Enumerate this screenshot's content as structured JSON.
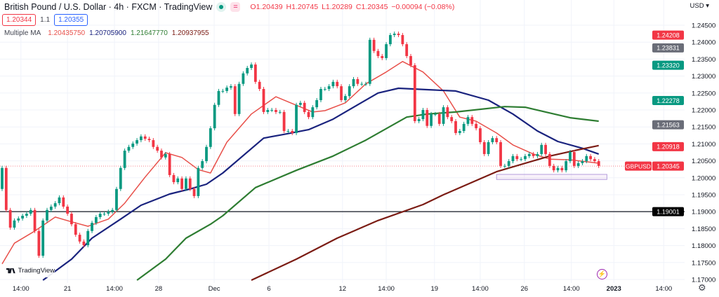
{
  "header": {
    "title": "British Pound / U.S. Dollar · 4h · FXCM · TradingView",
    "ohlc": {
      "o": "O1.20439",
      "h": "H1.20745",
      "l": "L1.20289",
      "c": "C1.20345",
      "change": "−0.00094 (−0.08%)"
    },
    "sell_price": "1.20344",
    "spread": "1.1",
    "buy_price": "1.20355",
    "indicator_name": "Multiple MA",
    "ma_values": [
      "1.20435750",
      "1.20705900",
      "1.21647770",
      "1.20937955"
    ],
    "currency": "USD ▾"
  },
  "colors": {
    "up": "#089981",
    "down": "#f23645",
    "ma1": "#e8504a",
    "ma2": "#1a237e",
    "ma3": "#2e7d32",
    "ma4": "#7b1c14",
    "hline": "#131722"
  },
  "icons": {
    "logo": "tradingview-logo",
    "events": "lightning-icon",
    "settings": "gear-icon"
  },
  "logo_text": "TradingView",
  "chart_data": {
    "type": "candlestick",
    "symbol": "GBPUSD",
    "interval": "4h",
    "ylim": [
      1.169,
      1.2524
    ],
    "y_ticks": [
      "1.24500",
      "1.24000",
      "1.23500",
      "1.23000",
      "1.22500",
      "1.22000",
      "1.21500",
      "1.21000",
      "1.20500",
      "1.20000",
      "1.19500",
      "1.19000",
      "1.18500",
      "1.18000",
      "1.17500",
      "1.17000"
    ],
    "x_ticks": [
      {
        "label": "14:00",
        "bar": 4.6
      },
      {
        "label": "21",
        "bar": 16
      },
      {
        "label": "14:00",
        "bar": 27.5
      },
      {
        "label": "28",
        "bar": 38.3
      },
      {
        "label": "Dec",
        "bar": 51.9
      },
      {
        "label": "6",
        "bar": 65.3
      },
      {
        "label": "12",
        "bar": 83.3
      },
      {
        "label": "14:00",
        "bar": 94
      },
      {
        "label": "19",
        "bar": 105.8
      },
      {
        "label": "14:00",
        "bar": 117
      },
      {
        "label": "26",
        "bar": 127.8
      },
      {
        "label": "14:00",
        "bar": 139.3
      },
      {
        "label": "2023",
        "bar": 149.7,
        "bold": true
      },
      {
        "label": "14:00",
        "bar": 161.9
      }
    ],
    "first_open": 1.1967,
    "closes": [
      1.2029,
      1.1905,
      1.1853,
      1.1874,
      1.188,
      1.1888,
      1.1894,
      1.1905,
      1.1843,
      1.177,
      1.1874,
      1.1905,
      1.1915,
      1.1925,
      1.1942,
      1.1915,
      1.1894,
      1.1863,
      1.1832,
      1.1812,
      1.1801,
      1.1843,
      1.1867,
      1.1884,
      1.1894,
      1.1894,
      1.19,
      1.1905,
      1.1967,
      1.2029,
      1.208,
      1.2091,
      1.2101,
      1.2111,
      1.2122,
      1.2115,
      1.2111,
      1.2091,
      1.208,
      1.206,
      1.207,
      1.2008,
      1.1987,
      1.1998,
      1.1967,
      1.1998,
      1.1967,
      1.1946,
      1.2029,
      1.2049,
      1.2091,
      1.2146,
      1.2215,
      1.2256,
      1.2256,
      1.2266,
      1.227,
      1.2188,
      1.2277,
      1.2308,
      1.2324,
      1.2334,
      1.2283,
      1.2262,
      1.2194,
      1.22,
      1.22,
      1.2194,
      1.2194,
      1.2138,
      1.2138,
      1.2132,
      1.2215,
      1.2221,
      1.2194,
      1.2179,
      1.2208,
      1.2229,
      1.2262,
      1.2262,
      1.227,
      1.2283,
      1.227,
      1.2229,
      1.2241,
      1.227,
      1.2291,
      1.2277,
      1.2277,
      1.2277,
      1.2407,
      1.2374,
      1.2359,
      1.2353,
      1.2394,
      1.2421,
      1.2425,
      1.2421,
      1.2394,
      1.2359,
      1.2332,
      1.2167,
      1.2173,
      1.22,
      1.2153,
      1.2188,
      1.2188,
      1.2159,
      1.2208,
      1.2179,
      1.2167,
      1.2132,
      1.2138,
      1.2159,
      1.2179,
      1.2159,
      1.2146,
      1.2105,
      1.207,
      1.2105,
      1.2117,
      1.2105,
      1.2035,
      1.2035,
      1.2049,
      1.2064,
      1.2055,
      1.2055,
      1.2064,
      1.207,
      1.2064,
      1.207,
      1.2097,
      1.207,
      1.2035,
      1.2022,
      1.2029,
      1.2022,
      1.2049,
      1.2076,
      1.2035,
      1.2043,
      1.2049,
      1.2064,
      1.2055,
      1.2049,
      1.2035
    ],
    "moving_averages": [
      {
        "color_key": "ma1",
        "points": [
          [
            0,
            1.1746
          ],
          [
            3,
            1.1807
          ],
          [
            8,
            1.1843
          ],
          [
            13,
            1.1884
          ],
          [
            17,
            1.187
          ],
          [
            21,
            1.1857
          ],
          [
            26,
            1.1878
          ],
          [
            30,
            1.1925
          ],
          [
            35,
            1.2002
          ],
          [
            40,
            1.2074
          ],
          [
            44,
            1.206
          ],
          [
            48,
            1.2024
          ],
          [
            51,
            1.2014
          ],
          [
            55,
            1.2105
          ],
          [
            61,
            1.2188
          ],
          [
            67,
            1.2239
          ],
          [
            71,
            1.2219
          ],
          [
            76,
            1.2194
          ],
          [
            79,
            1.2198
          ],
          [
            84,
            1.2221
          ],
          [
            89,
            1.2277
          ],
          [
            94,
            1.2312
          ],
          [
            98,
            1.2343
          ],
          [
            103,
            1.2312
          ],
          [
            108,
            1.2256
          ],
          [
            112,
            1.2179
          ],
          [
            116,
            1.2167
          ],
          [
            121,
            1.2132
          ],
          [
            125,
            1.2097
          ],
          [
            130,
            1.207
          ],
          [
            134,
            1.2055
          ],
          [
            139,
            1.2053
          ],
          [
            146,
            1.2043
          ]
        ]
      },
      {
        "color_key": "ma2",
        "points": [
          [
            10,
            1.1698
          ],
          [
            17,
            1.176
          ],
          [
            22,
            1.1822
          ],
          [
            29,
            1.1878
          ],
          [
            34,
            1.1919
          ],
          [
            41,
            1.1952
          ],
          [
            46,
            1.1967
          ],
          [
            50,
            1.1981
          ],
          [
            54,
            1.2014
          ],
          [
            64,
            1.2117
          ],
          [
            69,
            1.2128
          ],
          [
            75,
            1.2142
          ],
          [
            81,
            1.2173
          ],
          [
            87,
            1.2215
          ],
          [
            92,
            1.225
          ],
          [
            97,
            1.2264
          ],
          [
            104,
            1.226
          ],
          [
            111,
            1.2256
          ],
          [
            119,
            1.2229
          ],
          [
            125,
            1.2188
          ],
          [
            131,
            1.2138
          ],
          [
            136,
            1.2107
          ],
          [
            142,
            1.2087
          ],
          [
            146,
            1.207
          ]
        ]
      },
      {
        "color_key": "ma3",
        "points": [
          [
            33,
            1.1698
          ],
          [
            40,
            1.176
          ],
          [
            45,
            1.1822
          ],
          [
            51,
            1.1863
          ],
          [
            54,
            1.1888
          ],
          [
            62,
            1.1971
          ],
          [
            72,
            1.2022
          ],
          [
            81,
            1.2064
          ],
          [
            89,
            1.2111
          ],
          [
            99,
            1.2179
          ],
          [
            104,
            1.2188
          ],
          [
            111,
            1.2194
          ],
          [
            123,
            1.221
          ],
          [
            128,
            1.2208
          ],
          [
            133,
            1.2194
          ],
          [
            139,
            1.2177
          ],
          [
            146,
            1.2167
          ]
        ]
      },
      {
        "color_key": "ma4",
        "points": [
          [
            61,
            1.1698
          ],
          [
            72,
            1.176
          ],
          [
            82,
            1.1822
          ],
          [
            92,
            1.1874
          ],
          [
            103,
            1.1921
          ],
          [
            108,
            1.195
          ],
          [
            121,
            1.2018
          ],
          [
            134,
            1.2064
          ],
          [
            140,
            1.208
          ],
          [
            146,
            1.2095
          ]
        ]
      }
    ],
    "horizontal_line": 1.19001,
    "current_price": 1.20345,
    "zone": {
      "from_bar": 121,
      "to_bar": 148,
      "top": 1.201,
      "bottom": 1.1995
    },
    "price_labels": [
      {
        "text": "1.24208",
        "price": 1.24208,
        "color": "#f23645"
      },
      {
        "text": "1.23831",
        "price": 1.23831,
        "color": "#6a6d78"
      },
      {
        "text": "1.23320",
        "price": 1.2332,
        "color": "#089981"
      },
      {
        "text": "1.22278",
        "price": 1.22278,
        "color": "#089981"
      },
      {
        "text": "1.21563",
        "price": 1.21563,
        "color": "#6a6d78"
      },
      {
        "text": "1.20918",
        "price": 1.20918,
        "color": "#f23645"
      },
      {
        "text": "1.20345",
        "price": 1.20345,
        "color": "#f23645",
        "tag": "GBPUSD"
      },
      {
        "text": "1.19001",
        "price": 1.19001,
        "color": "#000000"
      }
    ]
  }
}
